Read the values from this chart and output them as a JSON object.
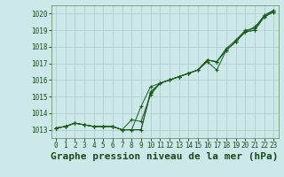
{
  "background_color": "#cce8e8",
  "grid_color": "#aacccc",
  "line_color": "#1a5c1a",
  "title": "Graphe pression niveau de la mer (hPa)",
  "xlim": [
    -0.5,
    23.5
  ],
  "ylim": [
    1012.5,
    1020.5
  ],
  "yticks": [
    1013,
    1014,
    1015,
    1016,
    1017,
    1018,
    1019,
    1020
  ],
  "xticks": [
    0,
    1,
    2,
    3,
    4,
    5,
    6,
    7,
    8,
    9,
    10,
    11,
    12,
    13,
    14,
    15,
    16,
    17,
    18,
    19,
    20,
    21,
    22,
    23
  ],
  "series": [
    [
      1013.1,
      1013.2,
      1013.4,
      1013.3,
      1013.2,
      1013.2,
      1013.2,
      1013.0,
      1013.6,
      1013.5,
      1015.1,
      1015.8,
      1016.0,
      1016.2,
      1016.4,
      1016.6,
      1017.1,
      1016.6,
      1017.8,
      1018.3,
      1018.9,
      1019.2,
      1019.8,
      1020.2
    ],
    [
      1013.1,
      1013.2,
      1013.4,
      1013.3,
      1013.2,
      1013.2,
      1013.2,
      1013.0,
      1013.0,
      1013.0,
      1015.3,
      1015.8,
      1016.0,
      1016.2,
      1016.4,
      1016.6,
      1017.2,
      1017.1,
      1017.8,
      1018.3,
      1018.9,
      1019.0,
      1019.8,
      1020.1
    ],
    [
      1013.1,
      1013.2,
      1013.4,
      1013.3,
      1013.2,
      1013.2,
      1013.2,
      1013.0,
      1013.0,
      1014.4,
      1015.6,
      1015.8,
      1016.0,
      1016.2,
      1016.4,
      1016.6,
      1017.2,
      1017.1,
      1017.9,
      1018.4,
      1019.0,
      1019.1,
      1019.9,
      1020.2
    ],
    [
      1013.1,
      1013.2,
      1013.4,
      1013.3,
      1013.2,
      1013.2,
      1013.2,
      1013.0,
      1013.0,
      1013.0,
      1015.2,
      1015.8,
      1016.0,
      1016.2,
      1016.4,
      1016.6,
      1017.2,
      1017.1,
      1017.8,
      1018.3,
      1018.9,
      1019.0,
      1019.8,
      1020.1
    ]
  ],
  "title_fontsize": 8,
  "tick_fontsize": 5.5
}
